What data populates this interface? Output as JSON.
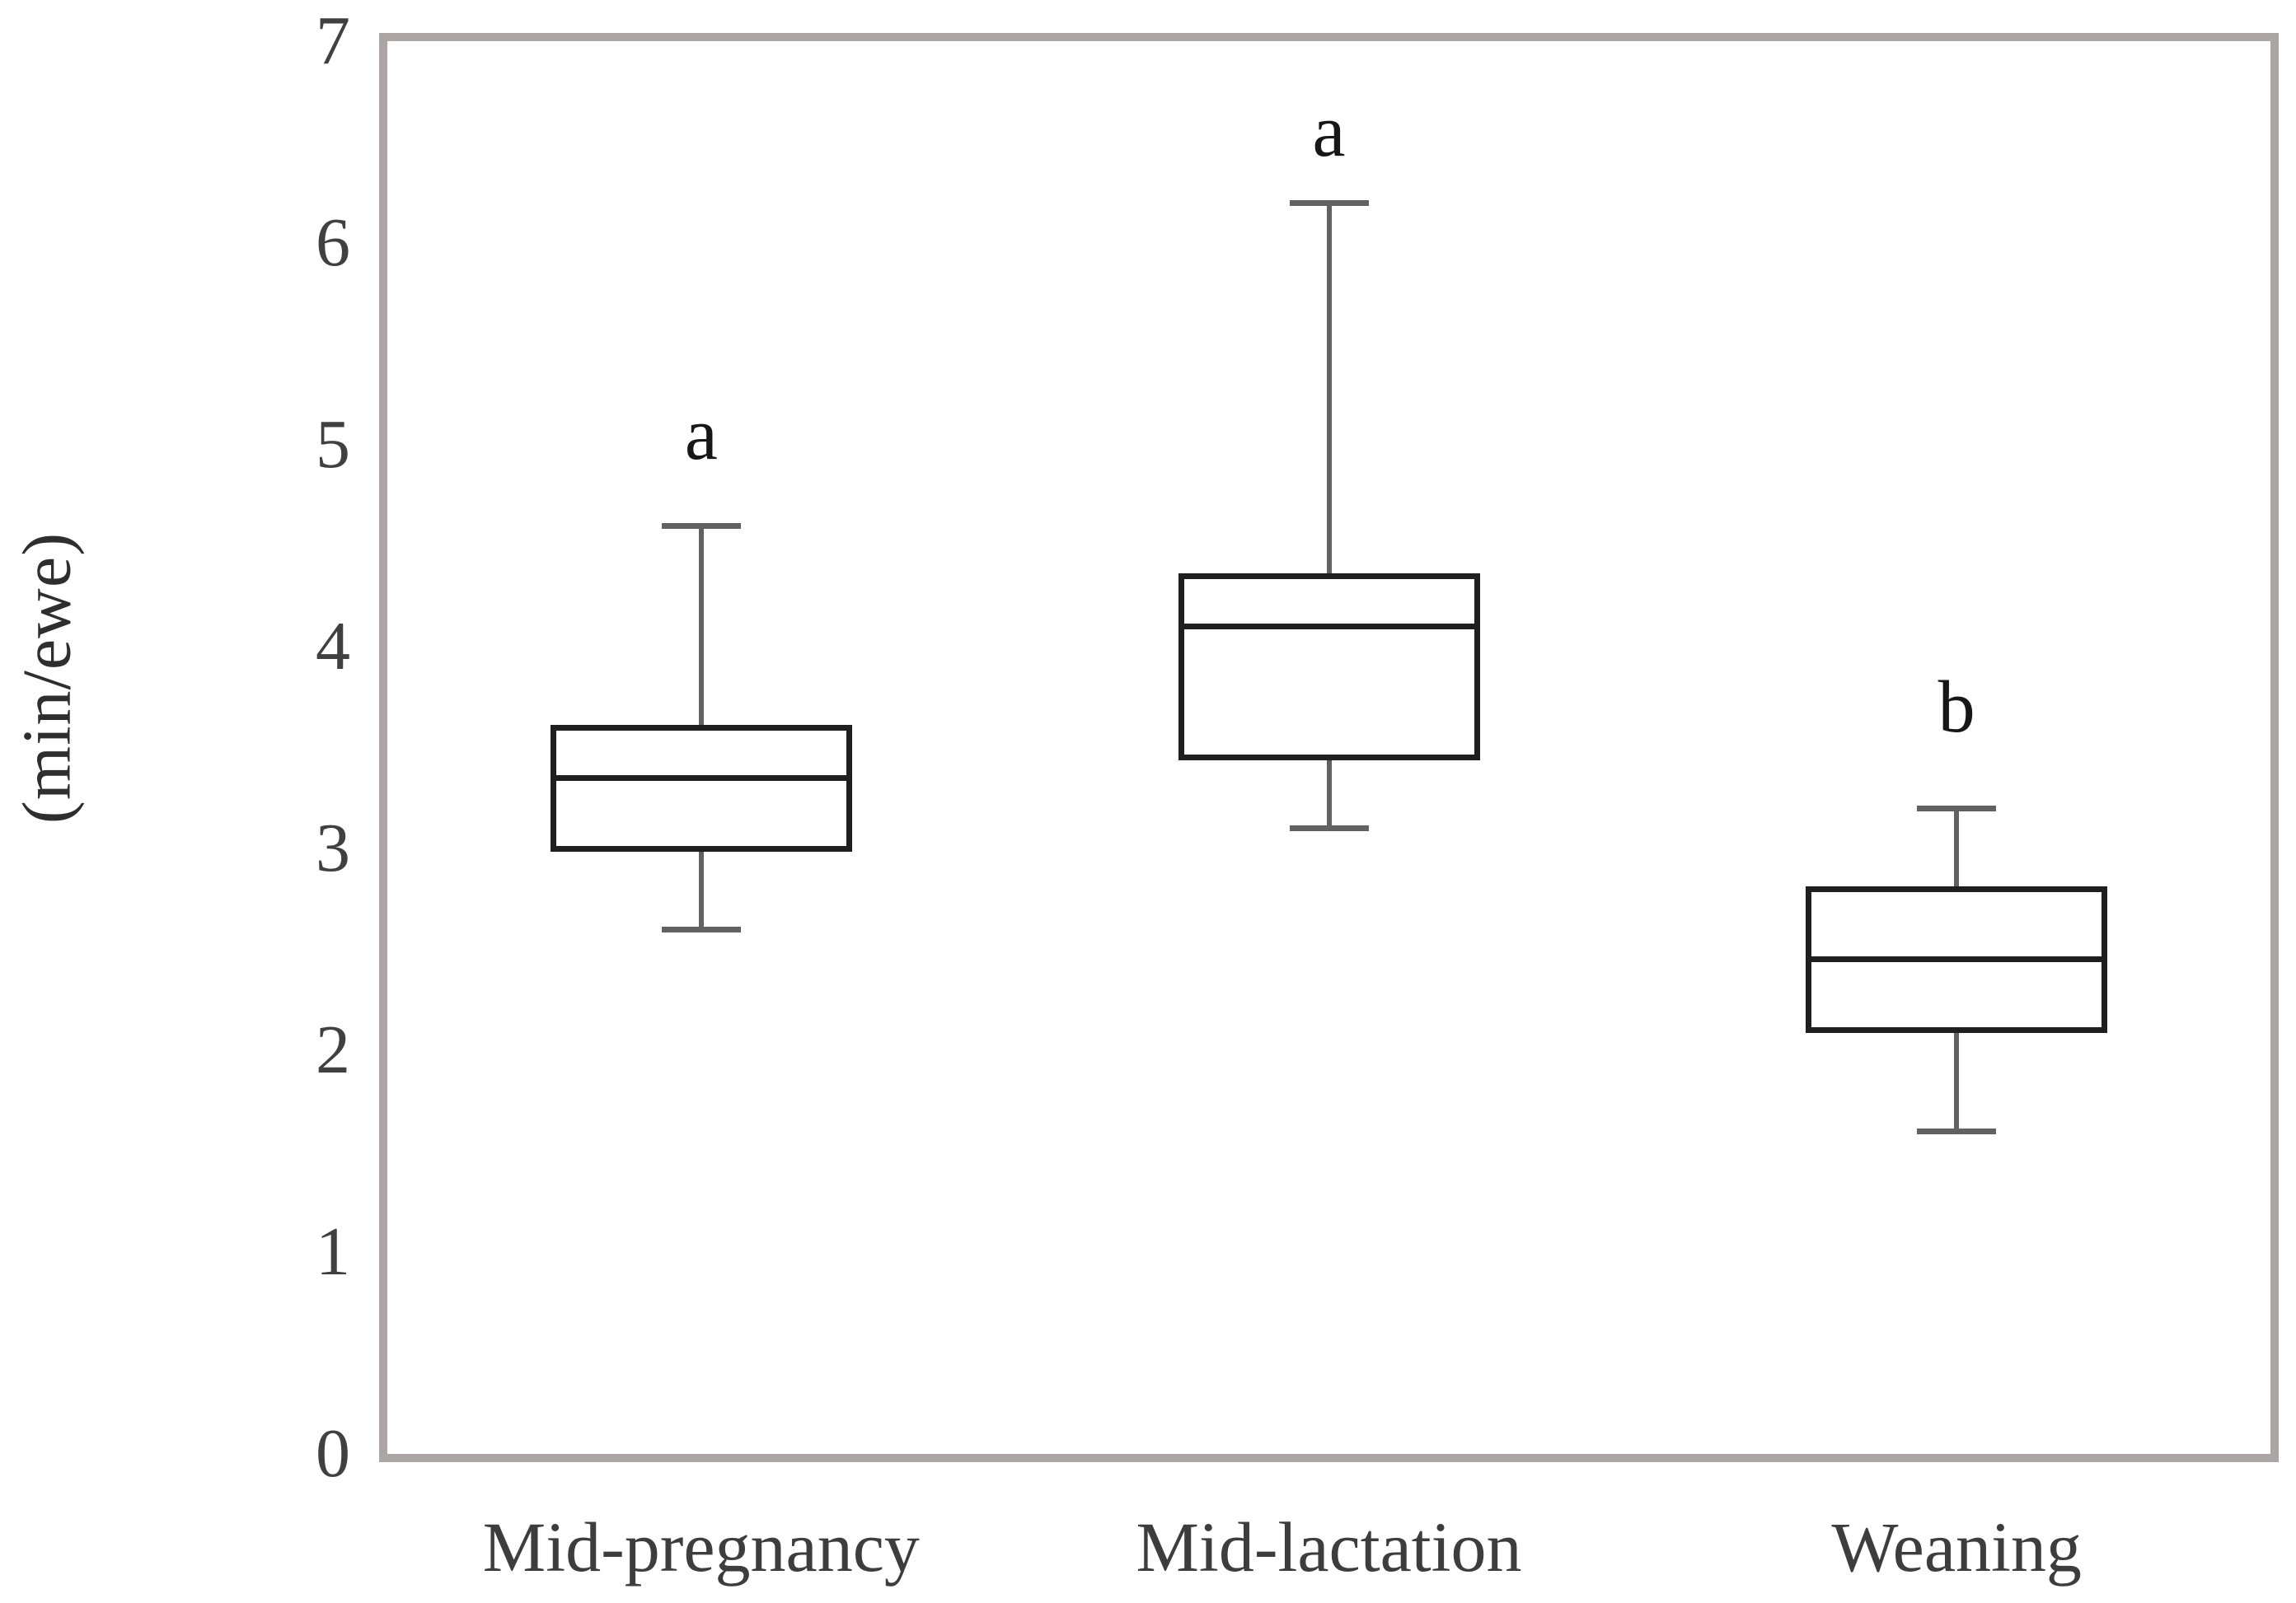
{
  "chart_data": {
    "type": "boxplot",
    "title": "",
    "xlabel": "",
    "ylabel": "(min/ewe)",
    "ylim": [
      0,
      7
    ],
    "yticks": [
      0,
      1,
      2,
      3,
      4,
      5,
      6,
      7
    ],
    "grid": false,
    "legend": false,
    "categories": [
      "Mid-pregnancy",
      "Mid-lactation",
      "Weaning"
    ],
    "series": [
      {
        "category": "Mid-pregnancy",
        "whisker_low": 2.6,
        "q1": 3.0,
        "median": 3.35,
        "q3": 3.6,
        "whisker_high": 4.6,
        "sig_letter": "a",
        "sig_letter_y": 5.05
      },
      {
        "category": "Mid-lactation",
        "whisker_low": 3.1,
        "q1": 3.45,
        "median": 4.1,
        "q3": 4.35,
        "whisker_high": 6.2,
        "sig_letter": "a",
        "sig_letter_y": 6.55
      },
      {
        "category": "Weaning",
        "whisker_low": 1.6,
        "q1": 2.1,
        "median": 2.45,
        "q3": 2.8,
        "whisker_high": 3.2,
        "sig_letter": "b",
        "sig_letter_y": 3.7
      }
    ]
  },
  "colors": {
    "background": "#ffffff",
    "plot_border": "#aba5a4",
    "box_stroke": "#1f1f1f",
    "median_stroke": "#1f1f1f",
    "whisker": "#616161",
    "tick_text": "#404040",
    "category_text": "#3d3d3d",
    "letter_text": "#171717",
    "ylabel_text": "#2e2e2e"
  }
}
